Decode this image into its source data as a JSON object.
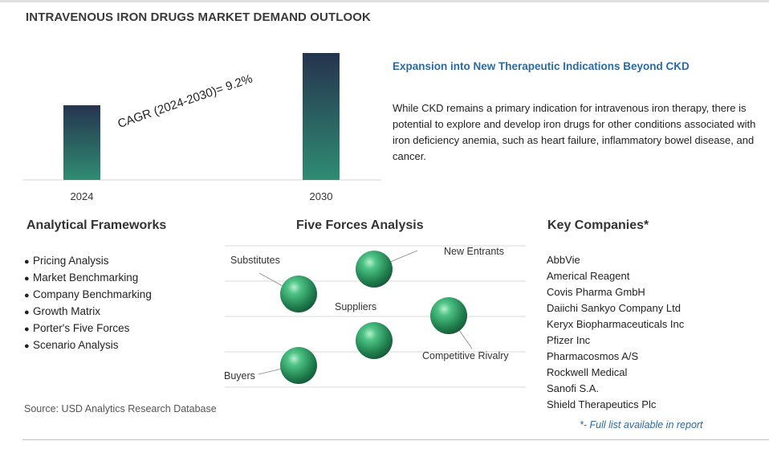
{
  "page_title": "INTRAVENOUS IRON DRUGS MARKET DEMAND OUTLOOK",
  "chart_data": {
    "type": "bar",
    "categories": [
      "2024",
      "2030"
    ],
    "values": [
      1.0,
      1.7
    ],
    "value_scale": "relative",
    "annotation": "CAGR (2024-2030)=  9.2%",
    "title": "",
    "xlabel": "",
    "ylabel": "",
    "grid": false,
    "colors": {
      "bar_top": "#26344f",
      "bar_bottom": "#2f8c72"
    }
  },
  "highlight": {
    "heading": "Expansion into New Therapeutic Indications Beyond CKD",
    "body": "While CKD remains a primary indication for intravenous iron therapy, there is potential to explore and develop iron drugs for other conditions associated with iron deficiency anemia, such as heart failure, inflammatory bowel disease, and cancer."
  },
  "frameworks": {
    "title": "Analytical Frameworks",
    "items": [
      "Pricing Analysis",
      "Market Benchmarking",
      "Company Benchmarking",
      "Growth Matrix",
      "Porter's Five Forces",
      "Scenario Analysis"
    ]
  },
  "five_forces": {
    "title": "Five Forces Analysis",
    "labels": {
      "new_entrants": "New Entrants",
      "substitutes": "Substitutes",
      "suppliers": "Suppliers",
      "competitive_rivalry": "Competitive Rivalry",
      "buyers": "Buyers"
    }
  },
  "companies": {
    "title": "Key Companies*",
    "items": [
      "AbbVie",
      "Americal Reagent",
      "Covis Pharma GmbH",
      "Daiichi Sankyo Company Ltd",
      "Keryx Biopharmaceuticals Inc",
      "Pfizer Inc",
      "Pharmacosmos A/S",
      "Rockwell Medical",
      "Sanofi S.A.",
      "Shield Therapeutics Plc"
    ],
    "note": "*- Full list available in report"
  },
  "source": "Source: USD Analytics Research Database",
  "colors": {
    "accent_blue": "#2b6aa2",
    "sphere": "#2e9a66"
  }
}
